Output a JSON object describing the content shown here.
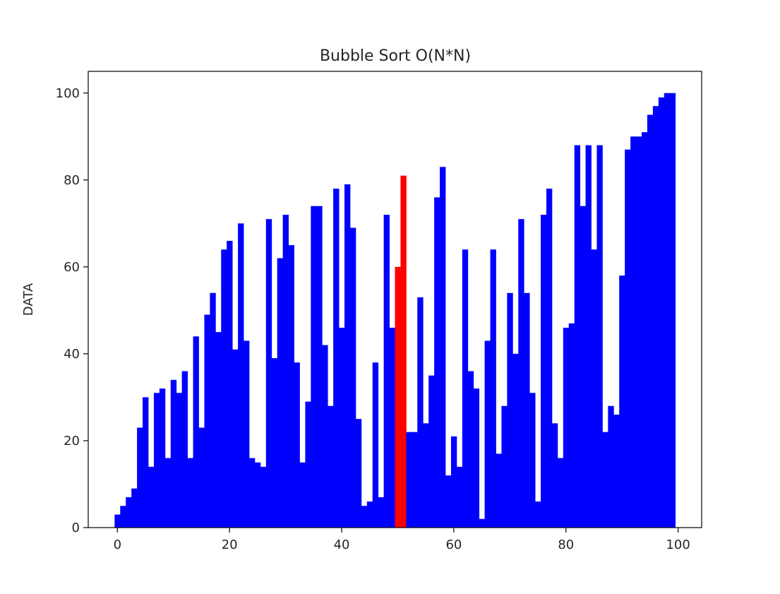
{
  "chart_data": {
    "type": "bar",
    "title": "Bubble Sort O(N*N)",
    "xlabel": "",
    "ylabel": "DATA",
    "xlim": [
      -5.2,
      104.2
    ],
    "ylim": [
      0,
      105
    ],
    "grid": false,
    "bar_width": 1.0,
    "x_ticks": [
      0,
      20,
      40,
      60,
      80,
      100
    ],
    "y_ticks": [
      0,
      20,
      40,
      60,
      80,
      100
    ],
    "x_tick_labels": [
      "0",
      "20",
      "40",
      "60",
      "80",
      "100"
    ],
    "y_tick_labels": [
      "0",
      "20",
      "40",
      "60",
      "80",
      "100"
    ],
    "default_color": "#0000ff",
    "highlight_color": "#ff0000",
    "highlight_indices": [
      50,
      51
    ],
    "x": [
      0,
      1,
      2,
      3,
      4,
      5,
      6,
      7,
      8,
      9,
      10,
      11,
      12,
      13,
      14,
      15,
      16,
      17,
      18,
      19,
      20,
      21,
      22,
      23,
      24,
      25,
      26,
      27,
      28,
      29,
      30,
      31,
      32,
      33,
      34,
      35,
      36,
      37,
      38,
      39,
      40,
      41,
      42,
      43,
      44,
      45,
      46,
      47,
      48,
      49,
      50,
      51,
      52,
      53,
      54,
      55,
      56,
      57,
      58,
      59,
      60,
      61,
      62,
      63,
      64,
      65,
      66,
      67,
      68,
      69,
      70,
      71,
      72,
      73,
      74,
      75,
      76,
      77,
      78,
      79,
      80,
      81,
      82,
      83,
      84,
      85,
      86,
      87,
      88,
      89,
      90,
      91,
      92,
      93,
      94,
      95,
      96,
      97,
      98,
      99
    ],
    "values": [
      3,
      5,
      7,
      9,
      23,
      30,
      14,
      31,
      32,
      16,
      34,
      31,
      36,
      16,
      44,
      23,
      49,
      54,
      45,
      64,
      66,
      41,
      70,
      43,
      16,
      15,
      14,
      71,
      39,
      62,
      72,
      65,
      38,
      15,
      29,
      74,
      74,
      42,
      28,
      78,
      46,
      79,
      69,
      25,
      5,
      6,
      38,
      7,
      72,
      46,
      60,
      81,
      22,
      22,
      53,
      24,
      35,
      76,
      83,
      12,
      21,
      14,
      64,
      36,
      32,
      2,
      43,
      64,
      17,
      28,
      54,
      40,
      71,
      54,
      31,
      6,
      72,
      78,
      24,
      16,
      46,
      47,
      88,
      74,
      88,
      64,
      88,
      22,
      28,
      26,
      58,
      87,
      90,
      90,
      91,
      95,
      97,
      99,
      100,
      100
    ]
  }
}
